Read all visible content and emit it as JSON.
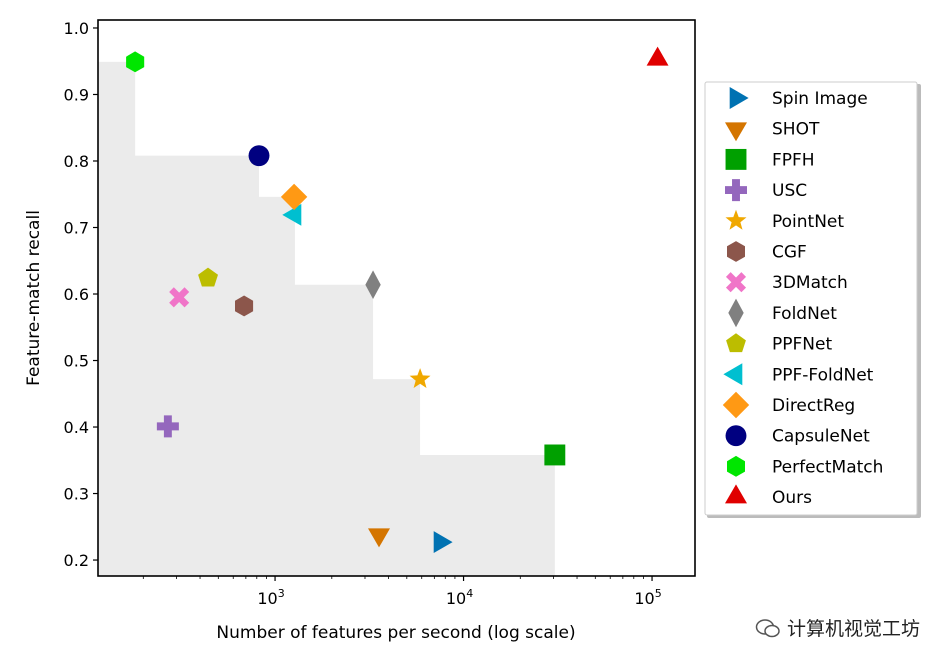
{
  "chart_data": {
    "type": "scatter",
    "title": "",
    "xlabel": "Number of features per second (log scale)",
    "ylabel": "Feature-match recall",
    "xscale": "log",
    "xlim": [
      115,
      169000
    ],
    "ylim": [
      0.176,
      1.012
    ],
    "xticks": [
      {
        "value": 1000,
        "label": "10",
        "exp": "3"
      },
      {
        "value": 10000,
        "label": "10",
        "exp": "4"
      },
      {
        "value": 100000,
        "label": "10",
        "exp": "5"
      }
    ],
    "yticks": [
      {
        "value": 0.2,
        "label": "0.2"
      },
      {
        "value": 0.3,
        "label": "0.3"
      },
      {
        "value": 0.4,
        "label": "0.4"
      },
      {
        "value": 0.5,
        "label": "0.5"
      },
      {
        "value": 0.6,
        "label": "0.6"
      },
      {
        "value": 0.7,
        "label": "0.7"
      },
      {
        "value": 0.8,
        "label": "0.8"
      },
      {
        "value": 0.9,
        "label": "0.9"
      },
      {
        "value": 1.0,
        "label": "1.0"
      }
    ],
    "legend_position": "outside-right",
    "shaded_region": "Pareto frontier of prior methods",
    "series": [
      {
        "name": "Spin Image",
        "x": 7500,
        "y": 0.227,
        "marker": "triangle-right",
        "color": "#0072b2"
      },
      {
        "name": "SHOT",
        "x": 3560,
        "y": 0.238,
        "marker": "triangle-down",
        "color": "#d47500"
      },
      {
        "name": "FPFH",
        "x": 30500,
        "y": 0.358,
        "marker": "square",
        "color": "#00a000"
      },
      {
        "name": "USC",
        "x": 270,
        "y": 0.401,
        "marker": "plus",
        "color": "#9467bd"
      },
      {
        "name": "PointNet",
        "x": 5880,
        "y": 0.472,
        "marker": "star",
        "color": "#f0a800"
      },
      {
        "name": "CGF",
        "x": 685,
        "y": 0.582,
        "marker": "hexagon",
        "color": "#8c564b"
      },
      {
        "name": "3DMatch",
        "x": 310,
        "y": 0.595,
        "marker": "x",
        "color": "#f075c8"
      },
      {
        "name": "FoldNet",
        "x": 3310,
        "y": 0.614,
        "marker": "thin-diamond",
        "color": "#808080"
      },
      {
        "name": "PPFNet",
        "x": 441,
        "y": 0.624,
        "marker": "pentagon",
        "color": "#bcbd00"
      },
      {
        "name": "PPF-FoldNet",
        "x": 1275,
        "y": 0.719,
        "marker": "triangle-left",
        "color": "#00bfd0"
      },
      {
        "name": "DirectReg",
        "x": 1262,
        "y": 0.746,
        "marker": "diamond",
        "color": "#ff9914"
      },
      {
        "name": "CapsuleNet",
        "x": 822,
        "y": 0.808,
        "marker": "circle",
        "color": "#000080"
      },
      {
        "name": "PerfectMatch",
        "x": 181,
        "y": 0.949,
        "marker": "hexagon",
        "color": "#00e600"
      },
      {
        "name": "Ours",
        "x": 107000,
        "y": 0.953,
        "marker": "triangle-up",
        "color": "#e00000",
        "excluded_from_frontier": true
      }
    ]
  },
  "watermark": "计算机视觉工坊"
}
